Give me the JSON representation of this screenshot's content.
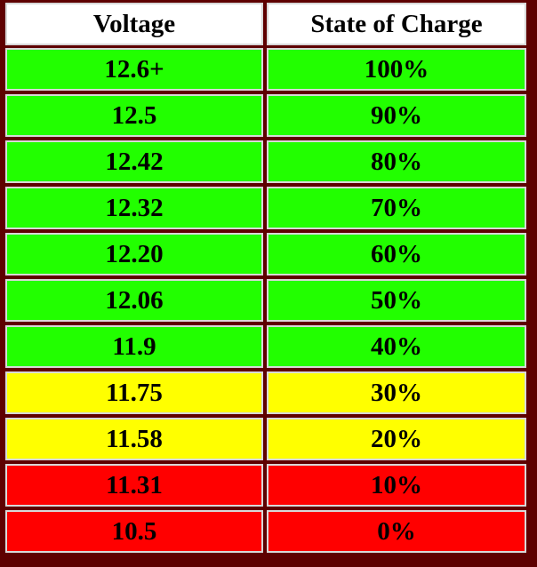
{
  "table": {
    "header": [
      "Voltage",
      "State of Charge"
    ],
    "rows": [
      [
        "12.6+",
        "100%"
      ],
      [
        "12.5",
        "90%"
      ],
      [
        "12.42",
        "80%"
      ],
      [
        "12.32",
        "70%"
      ],
      [
        "12.20",
        "60%"
      ],
      [
        "12.06",
        "50%"
      ],
      [
        "11.9",
        "40%"
      ],
      [
        "11.75",
        "30%"
      ],
      [
        "11.58",
        "20%"
      ],
      [
        "11.31",
        "10%"
      ],
      [
        "10.5",
        "0%"
      ]
    ],
    "header_color": "#ffffff",
    "row_colors": [
      "#22ff00",
      "#22ff00",
      "#22ff00",
      "#22ff00",
      "#22ff00",
      "#22ff00",
      "#22ff00",
      "#ffff00",
      "#ffff00",
      "#ff0000",
      "#ff0000"
    ]
  }
}
